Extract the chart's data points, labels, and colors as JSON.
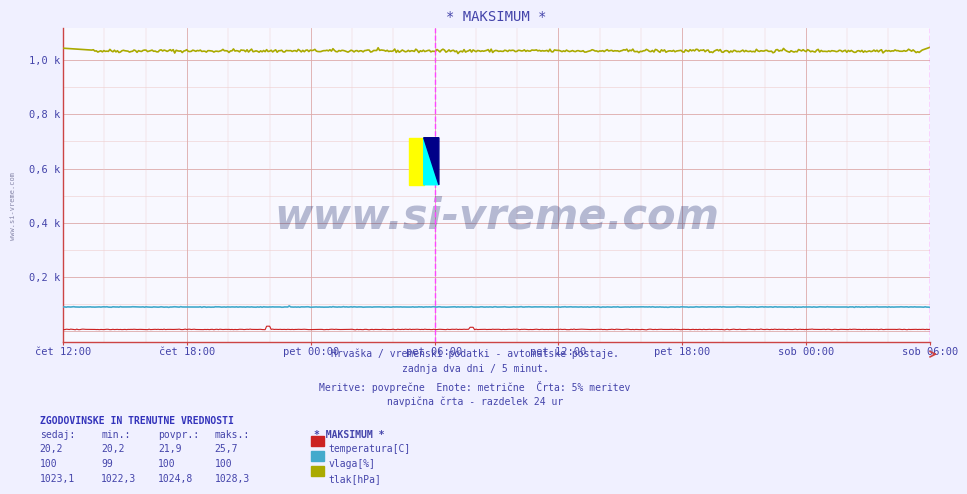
{
  "title": "* MAKSIMUM *",
  "title_color": "#4444aa",
  "bg_color": "#f0f0ff",
  "plot_bg_color": "#f8f8ff",
  "grid_major_color": "#ddaaaa",
  "grid_minor_color": "#eecccc",
  "axis_color": "#cc4444",
  "xlabel_color": "#4444aa",
  "ylabel_color": "#4444aa",
  "watermark": "www.si-vreme.com",
  "watermark_color": "#1a2a6a",
  "sidebar_text": "www.si-vreme.com",
  "sidebar_color": "#8888aa",
  "n_points": 576,
  "ylim_min": -0.04,
  "ylim_max": 1.12,
  "yticks": [
    0.0,
    0.2,
    0.4,
    0.6,
    0.8,
    1.0
  ],
  "ytick_labels": [
    "",
    "0,2 k",
    "0,4 k",
    "0,6 k",
    "0,8 k",
    "1,0 k"
  ],
  "xtick_labels": [
    "čet 12:00",
    "čet 18:00",
    "pet 00:00",
    "pet 06:00",
    "pet 12:00",
    "pet 18:00",
    "sob 00:00",
    "sob 06:00"
  ],
  "temp_color": "#cc2222",
  "humidity_color": "#44aacc",
  "pressure_color": "#aaaa00",
  "vline_color": "#ff44ff",
  "footer_line1": "Hrvaška / vremenski podatki - avtomatske postaje.",
  "footer_line2": "zadnja dva dni / 5 minut.",
  "footer_line3": "Meritve: povprečne  Enote: metrične  Črta: 5% meritev",
  "footer_line4": "navpična črta - razdelek 24 ur",
  "footer_color": "#4444aa",
  "legend_header": "* MAKSIMUM *",
  "legend_header_color": "#4444aa",
  "legend_items": [
    "temperatura[C]",
    "vlaga[%]",
    "tlak[hPa]"
  ],
  "legend_colors": [
    "#cc2222",
    "#44aacc",
    "#aaaa00"
  ],
  "table_header": "ZGODOVINSKE IN TRENUTNE VREDNOSTI",
  "table_cols": [
    "sedaj:",
    "min.:",
    "povpr.:",
    "maks.:"
  ],
  "table_rows": [
    [
      "20,2",
      "20,2",
      "21,9",
      "25,7"
    ],
    [
      "100",
      "99",
      "100",
      "100"
    ],
    [
      "1023,1",
      "1022,3",
      "1024,8",
      "1028,3"
    ]
  ]
}
